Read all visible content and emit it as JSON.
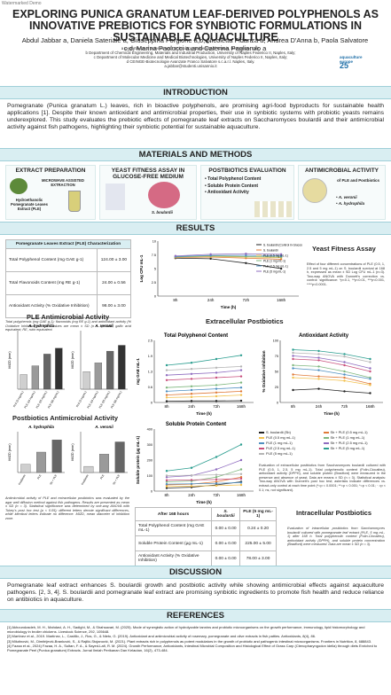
{
  "watermark": "Watermarked Demo",
  "title": "EXPLORING PUNICA GRANATUM LEAF-DERIVED POLYPHENOLS AS INNOVATIVE PREBIOTICS FOR SYNBIOTIC FORMULATIONS IN SUSTAINABLE AQUACULTURE",
  "authors": "Abdul Jabbar a, Daniela Sateriale a, Giuseppina Forgione a,b, Nicoletta Fidanza a, Andrea D'Anna b, Paola Salvatore c,d, Marina Paolucci a and Caterina Pagliarulo a",
  "affiliations": [
    "a Department of Science and Technology, University of Sannio, Benevento, Italy;",
    "b Department of Chemical Engineering, Materials and Industrial Production, University of Naples Federico II, Naples, Italy;",
    "c Department of Molecular Medicine and Medical Biotechnologies, University of Naples Federico II, Naples, Italy;",
    "d CEINGE-Biotecnologie Avanzate Franco Salvatore s.c.a.r.l. Naples, Italy.",
    "a.jabbar@studenti.unisannio.it"
  ],
  "logo": {
    "line1": "aquaculture",
    "line2": "europe",
    "num": "25"
  },
  "sections": {
    "intro": "INTRODUCTION",
    "methods": "MATERIALS AND METHODS",
    "results": "RESULTS",
    "discussion": "DISCUSSION",
    "references": "REFERENCES"
  },
  "intro_text": "Pomegranate (Punica granatum L.) leaves, rich in bioactive polyphenols, are promising agri-food byproducts for sustainable health applications [1]. Despite their known antioxidant and antimicrobial properties, their use in synbiotic systems with probiotic yeasts remains underexplored. This study evaluates the prebiotic effects of pomegranate leaf extracts on Saccharomyces boulardii and their antimicrobial activity against fish pathogens, highlighting their synbiotic potential for sustainable aquaculture.",
  "methods": {
    "extract_title": "EXTRACT PREPARATION",
    "mae": "MICROWAVE ASSISTED EXTRACTION",
    "ple": "Hydroethanolic Pomegranate Leaves Extract (PLE)",
    "yeast_title": "YEAST FITNESS ASSAY IN GLUCOSE-FREE MEDIUM",
    "yeast_label": "S. boulardii",
    "post_title": "POSTBIOTICS EVALUATION",
    "post_items": [
      "Total Polyphenol Content",
      "Soluble Protein Content",
      "Antioxidant Activity"
    ],
    "anti_title": "ANTIMICROBIAL ACTIVITY",
    "anti_sub": "of PLE and Postbiotics",
    "anti_items": [
      "A. veronii",
      "A. hydrophila"
    ]
  },
  "ple_table": {
    "title": "Pomegranate Leaves Extract (PLE) Characterization",
    "rows": [
      [
        "Total Polyphenol Content (mg GAE g-1)",
        "124.00 ± 3.00"
      ],
      [
        "Total Flavonoids Content (mg RE g-1)",
        "24.00 ± 0.56"
      ],
      [
        "Antioxidant Activity (% Oxidative Inhibition)",
        "98.00 ± 3.00"
      ]
    ],
    "note": "Total polyphenols (mg GAE g-1); flavonoids (mg RE g-1) and antioxidant activity (% Oxidative Inhibition) of PLE. Values are mean ± SD (n = 3). GAE, gallic acid equivalent; RE, rutin equivalent."
  },
  "yeast": {
    "title": "Yeast Fitness Assay",
    "ylabel": "Log CFU mL-1",
    "xlabel": "Time (h)",
    "legend": [
      "S. boulardii (Control in Glucose Deprivation)",
      "S. boulardii",
      "PLE (0.5 mg mL-1)",
      "PLE (1 mg mL-1)",
      "PLE (2.5 mg mL-1)",
      "PLE (5 mg mL-1)"
    ],
    "text": "Effect of four different concentrations of PLE (0.5, 1, 2.5 and 5 mg mL-1) on S. boulardii survival at 168 h, expressed as mean ± SD Log CFU mL-1 (n=3). Two-way ANOVA with Dunnett's correction vs. control: significance: *p<0.1, **p<0.01, ***p<0.001, ****p<0.0001."
  },
  "ple_anti": {
    "title": "PLE Antimicrobial Activity",
    "left": "A. hydrophila",
    "right": "A. veronii",
    "ylabel": "MIZD (mm)"
  },
  "post_anti": {
    "title": "Postbiotics Antimicrobial Activity",
    "left": "A. hydrophila",
    "right": "A. veronii",
    "ylabel": "MIZD (mm)",
    "caption": "Antimicrobial activity of PLE and extracellular postbiotics was evaluated by the agar well diffusion method against fish pathogens. Results are presented as mean ± SD (n = 3). Statistical significance was determined by one-way ANOVA with Tukey's post hoc test (p < 0.05); different letters denote significant differences, while identical letters indicate no difference. MIZD, mean diameter of inhibition zone."
  },
  "extra_title": "Extracellular Postbiotics",
  "tpc": {
    "title": "Total Polyphenol Content",
    "ylabel": "mg GAE mL-1",
    "xlabel": "Time (h)"
  },
  "aa": {
    "title": "Antioxidant Activity",
    "ylabel": "% Oxidative inhibition",
    "xlabel": "Time (h)"
  },
  "spc": {
    "title": "Soluble Protein Content",
    "ylabel": "Soluble protein (µg mL-1)",
    "xlabel": "Time (h)"
  },
  "legend2": [
    "S. boulardii (Sb)",
    "Sb + PLE (0.5 mg mL-1)",
    "PLE (0.5 mg mL-1)",
    "Sb + PLE (1 mg mL-1)",
    "PLE (1 mg mL-1)",
    "Sb + PLE (2.5 mg mL-1)",
    "PLE (2.5 mg mL-1)",
    "Sb + PLE (5 mg mL-1)",
    "PLE (5 mg mL-1)"
  ],
  "extra_text": "Evaluation of extracellular postbiotics from Saccharomyces boulardii cultured with PLE (0.5, 1, 2.5, 5 mg mL-1). Total polyphenolic content (Folin-Ciocalteu), antioxidant activity (DPPH), and soluble protein (Bradford) were measured in the presence and absence of yeast. Data are means ± SD (n = 3). Statistical analysis: Two-way ANOVA with Dunnett's post hoc test; asterisks indicate differences vs. extract-only control at each time point (*=p < 0.0001; **=p < 0.001; *=p < 0.01; · =p < 0.1; ns, not significant).",
  "intra_table": {
    "headers": [
      "After 168 hours",
      "S. boulardii",
      "PLE (5 mg mL-1)"
    ],
    "rows": [
      [
        "Total Polyphenol Content (mg GAE mL-1)",
        "0.00 ± 0.00",
        "0.24 ± 0.20"
      ],
      [
        "Soluble Protein Content (µg mL-1)",
        "0.00 ± 0.00",
        "225.00 ± 5.00"
      ],
      [
        "Antioxidant Activity (% Oxidative Inhibition)",
        "0.00 ± 0.00",
        "78.00 ± 3.00"
      ]
    ]
  },
  "intra_title": "Intracellular Postbiotics",
  "intra_text": "Evaluation of intracellular postbiotics from Saccharomyces boulardii cultured with pomegranate leaf extract (PLE, 5 mg mL-1) after 168 h. Total polyphenolic content (Folin-Ciocalteu), antioxidant activity (DPPH), and soluble protein concentration (Bradford) were measured. Data are mean ± SD (n = 3).",
  "discussion_text": "Pomegranate leaf extract enhances S. boulardii growth and postbiotic activity while showing antimicrobial effects against aquaculture pathogens. [2, 3, 4]. S. boulardii and pomegranate leaf extract are promising synbiotic ingredients to promote fish health and reduce reliance on antibiotics in aquaculture.",
  "references": [
    "[1] Akhoundzadeh, M. H., Mahdavi, A. H., Sadighi, M., & Shahsavari, M. (2025). Mode of synergistic action of hydrolyzable tannins and probiotic microorganisms on the growth performance, immunology, lipid histomorphology and microbiology in broiler chickens. Livestock Science, 292, 105648.",
    "[2] Martínez et al., 2019. Martínez, L., Castillo, J., Ros, G., & Nieto, G. (2019). Antioxidant and antimicrobial activity of rosemary, pomegranate and olive extracts in fish patties. Antioxidants, 8(4), 86.",
    "[3] Milutinović, M., Dimitrijević-Branković, S., & Rajilić-Stojanović, M. (2021). Plant extracts rich in polyphenols as potent modulators in the growth of probiotic and pathogenic intestinal microorganisms. Frontiers in Nutrition, 8, 688843.",
    "[4] Fazaa et al., 2024) Fazaa, H. A., Sultan, F. A., & Sayed-Lafi, R. M. (2024). Growth Performance, Antioxidants, Intestinal Microbial Composition and Histological Effect of Grass Carp (Ctenopharyngodon idella) through diets Enriched to Pomegranate Peel (Punica granatum) Extracts. Jurnal Ilmiah Perikanan Dan Kelautan, 16(2), 473-484."
  ],
  "chart_data": [
    {
      "type": "line",
      "title": "Yeast Fitness Assay",
      "xlabel": "Time (h)",
      "ylabel": "Log CFU mL-1",
      "categories": [
        "8h",
        "24h",
        "72h",
        "168h"
      ],
      "ylim": [
        0,
        10
      ],
      "series": [
        {
          "name": "S. boulardii (Control in Glucose Deprivation)",
          "values": [
            6.9,
            6.8,
            6.0,
            5.0
          ]
        },
        {
          "name": "S. boulardii",
          "values": [
            7.0,
            7.1,
            6.9,
            6.7
          ]
        },
        {
          "name": "PLE (0.5 mg mL-1)",
          "values": [
            7.1,
            7.2,
            7.1,
            7.0
          ]
        },
        {
          "name": "PLE (1 mg mL-1)",
          "values": [
            7.1,
            7.3,
            7.2,
            7.1
          ]
        },
        {
          "name": "PLE (2.5 mg mL-1)",
          "values": [
            7.2,
            7.4,
            7.4,
            7.3
          ]
        },
        {
          "name": "PLE (5 mg mL-1)",
          "values": [
            7.3,
            7.6,
            7.7,
            7.6
          ]
        }
      ]
    },
    {
      "type": "line",
      "title": "Total Polyphenol Content",
      "xlabel": "Time (h)",
      "ylabel": "mg GAE mL-1",
      "categories": [
        "8h",
        "24h",
        "72h",
        "168h"
      ],
      "ylim": [
        0,
        2.5
      ],
      "series": [
        {
          "name": "S. boulardii (Sb)",
          "values": [
            0.05,
            0.06,
            0.06,
            0.07
          ]
        },
        {
          "name": "Sb + PLE (0.5 mg mL-1)",
          "values": [
            0.3,
            0.35,
            0.4,
            0.45
          ]
        },
        {
          "name": "PLE (0.5 mg mL-1)",
          "values": [
            0.2,
            0.22,
            0.25,
            0.3
          ]
        },
        {
          "name": "Sb + PLE (1 mg mL-1)",
          "values": [
            0.6,
            0.65,
            0.7,
            0.8
          ]
        },
        {
          "name": "PLE (1 mg mL-1)",
          "values": [
            0.45,
            0.5,
            0.55,
            0.6
          ]
        },
        {
          "name": "Sb + PLE (2.5 mg mL-1)",
          "values": [
            1.1,
            1.15,
            1.2,
            1.3
          ]
        },
        {
          "name": "PLE (2.5 mg mL-1)",
          "values": [
            0.9,
            0.95,
            1.0,
            1.05
          ]
        },
        {
          "name": "Sb + PLE (5 mg mL-1)",
          "values": [
            1.5,
            1.6,
            1.75,
            1.9
          ]
        },
        {
          "name": "PLE (5 mg mL-1)",
          "values": [
            1.3,
            1.35,
            1.4,
            1.45
          ]
        }
      ]
    },
    {
      "type": "line",
      "title": "Antioxidant Activity",
      "xlabel": "Time (h)",
      "ylabel": "% Oxidative inhibition",
      "categories": [
        "8h",
        "24h",
        "72h",
        "168h"
      ],
      "ylim": [
        0,
        100
      ],
      "series": [
        {
          "name": "S. boulardii (Sb)",
          "values": [
            20,
            22,
            18,
            15
          ]
        },
        {
          "name": "Sb + PLE (0.5 mg mL-1)",
          "values": [
            45,
            42,
            40,
            30
          ]
        },
        {
          "name": "PLE (0.5 mg mL-1)",
          "values": [
            40,
            38,
            35,
            28
          ]
        },
        {
          "name": "Sb + PLE (1 mg mL-1)",
          "values": [
            60,
            58,
            50,
            40
          ]
        },
        {
          "name": "PLE (1 mg mL-1)",
          "values": [
            55,
            52,
            45,
            38
          ]
        },
        {
          "name": "Sb + PLE (2.5 mg mL-1)",
          "values": [
            75,
            72,
            65,
            55
          ]
        },
        {
          "name": "PLE (2.5 mg mL-1)",
          "values": [
            70,
            68,
            60,
            50
          ]
        },
        {
          "name": "Sb + PLE (5 mg mL-1)",
          "values": [
            85,
            83,
            78,
            70
          ]
        },
        {
          "name": "PLE (5 mg mL-1)",
          "values": [
            80,
            78,
            74,
            65
          ]
        }
      ]
    },
    {
      "type": "line",
      "title": "Soluble Protein Content",
      "xlabel": "Time (h)",
      "ylabel": "Soluble protein (µg mL-1)",
      "categories": [
        "8h",
        "24h",
        "72h",
        "168h"
      ],
      "ylim": [
        0,
        400
      ],
      "series": [
        {
          "name": "S. boulardii (Sb)",
          "values": [
            20,
            25,
            40,
            60
          ]
        },
        {
          "name": "Sb + PLE (0.5 mg mL-1)",
          "values": [
            40,
            45,
            60,
            90
          ]
        },
        {
          "name": "PLE (0.5 mg mL-1)",
          "values": [
            30,
            32,
            35,
            40
          ]
        },
        {
          "name": "Sb + PLE (1 mg mL-1)",
          "values": [
            60,
            65,
            90,
            140
          ]
        },
        {
          "name": "PLE (1 mg mL-1)",
          "values": [
            45,
            47,
            50,
            55
          ]
        },
        {
          "name": "Sb + PLE (2.5 mg mL-1)",
          "values": [
            90,
            100,
            140,
            200
          ]
        },
        {
          "name": "PLE (2.5 mg mL-1)",
          "values": [
            70,
            72,
            75,
            80
          ]
        },
        {
          "name": "Sb + PLE (5 mg mL-1)",
          "values": [
            130,
            150,
            220,
            300
          ]
        },
        {
          "name": "PLE (5 mg mL-1)",
          "values": [
            100,
            102,
            105,
            110
          ]
        }
      ]
    },
    {
      "type": "bar",
      "title": "PLE Antimicrobial Activity",
      "ylabel": "MIZD (mm)",
      "groups": [
        {
          "name": "A. hydrophila",
          "categories": [
            "PLE (5 mg/mL)",
            "PLE (10 mg/mL)",
            "PLE (25 mg/mL)",
            "PLE (50 mg/mL)"
          ],
          "values": [
            5,
            8,
            12,
            14
          ]
        },
        {
          "name": "A. veronii",
          "categories": [
            "PLE (5 mg/mL)",
            "PLE (10 mg/mL)",
            "PLE (25 mg/mL)",
            "PLE (50 mg/mL)"
          ],
          "values": [
            6,
            9,
            13,
            15
          ]
        }
      ],
      "ylim": [
        0,
        20
      ]
    },
    {
      "type": "bar",
      "title": "Postbiotics Antimicrobial Activity",
      "ylabel": "MIZD (mm)",
      "groups": [
        {
          "name": "A. hydrophila",
          "categories": [
            "Postbiotic",
            "PLE",
            "Sb + PLE"
          ],
          "values": [
            4,
            10,
            16
          ]
        },
        {
          "name": "A. veronii",
          "categories": [
            "Postbiotic",
            "PLE",
            "Sb + PLE"
          ],
          "values": [
            3,
            9,
            15
          ]
        }
      ],
      "ylim": [
        0,
        20
      ]
    }
  ]
}
